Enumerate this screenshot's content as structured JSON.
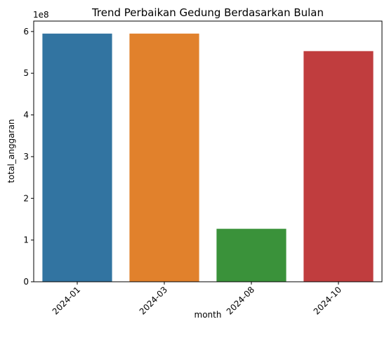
{
  "chart_data": {
    "type": "bar",
    "title": "Trend Perbaikan Gedung Berdasarkan Bulan",
    "xlabel": "month",
    "ylabel": "total_anggaran",
    "y_offset_label": "1e8",
    "categories": [
      "2024-01",
      "2024-03",
      "2024-08",
      "2024-10"
    ],
    "values": [
      595000000,
      595000000,
      127000000,
      553000000
    ],
    "colors": [
      "#3274a1",
      "#e1812c",
      "#3a923a",
      "#c03d3e"
    ],
    "ylim": [
      0,
      625000000
    ],
    "y_ticks": [
      0,
      100000000,
      200000000,
      300000000,
      400000000,
      500000000,
      600000000
    ],
    "y_tick_labels": [
      "0",
      "1",
      "2",
      "3",
      "4",
      "5",
      "6"
    ],
    "x_tick_rotation": 45,
    "grid": false,
    "legend": "none"
  }
}
